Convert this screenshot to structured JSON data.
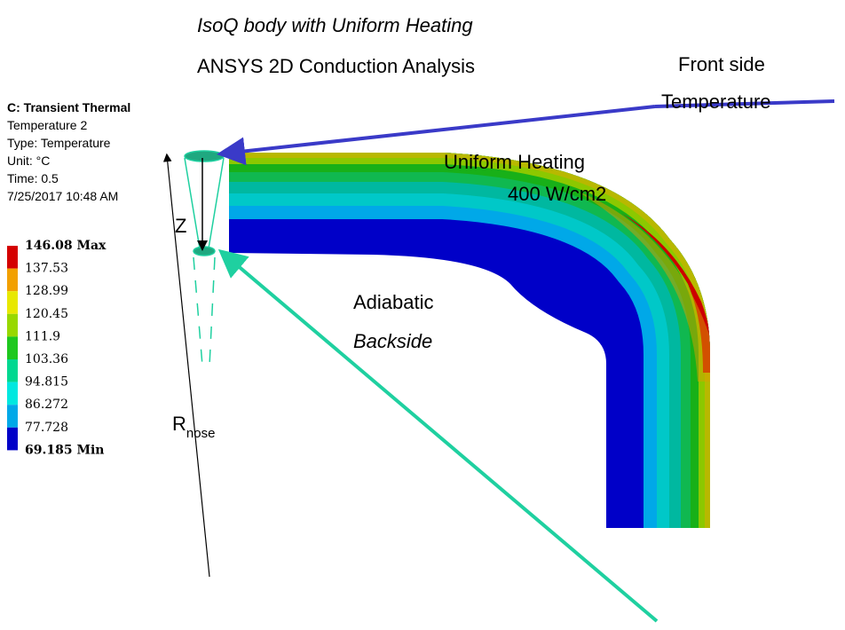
{
  "title": "IsoQ body with Uniform Heating",
  "subtitle": "ANSYS 2D Conduction Analysis",
  "info": [
    "C: Transient Thermal",
    "Temperature 2",
    "Type: Temperature",
    "Unit: °C",
    "Time: 0.5",
    "7/25/2017 10:48 AM"
  ],
  "legend": [
    "146.08 Max",
    "137.53",
    "128.99",
    "120.45",
    "111.9",
    "103.36",
    "94.815",
    "86.272",
    "77.728",
    "69.185 Min"
  ],
  "annotations": {
    "front_1": "Front side",
    "front_2": "Temperature",
    "heating_1": "Uniform Heating",
    "heating_2": "400 W/cm2",
    "back_1": "Adiabatic",
    "back_2": "Backside",
    "z": "Z",
    "r": "R",
    "r_sub": "nose"
  }
}
